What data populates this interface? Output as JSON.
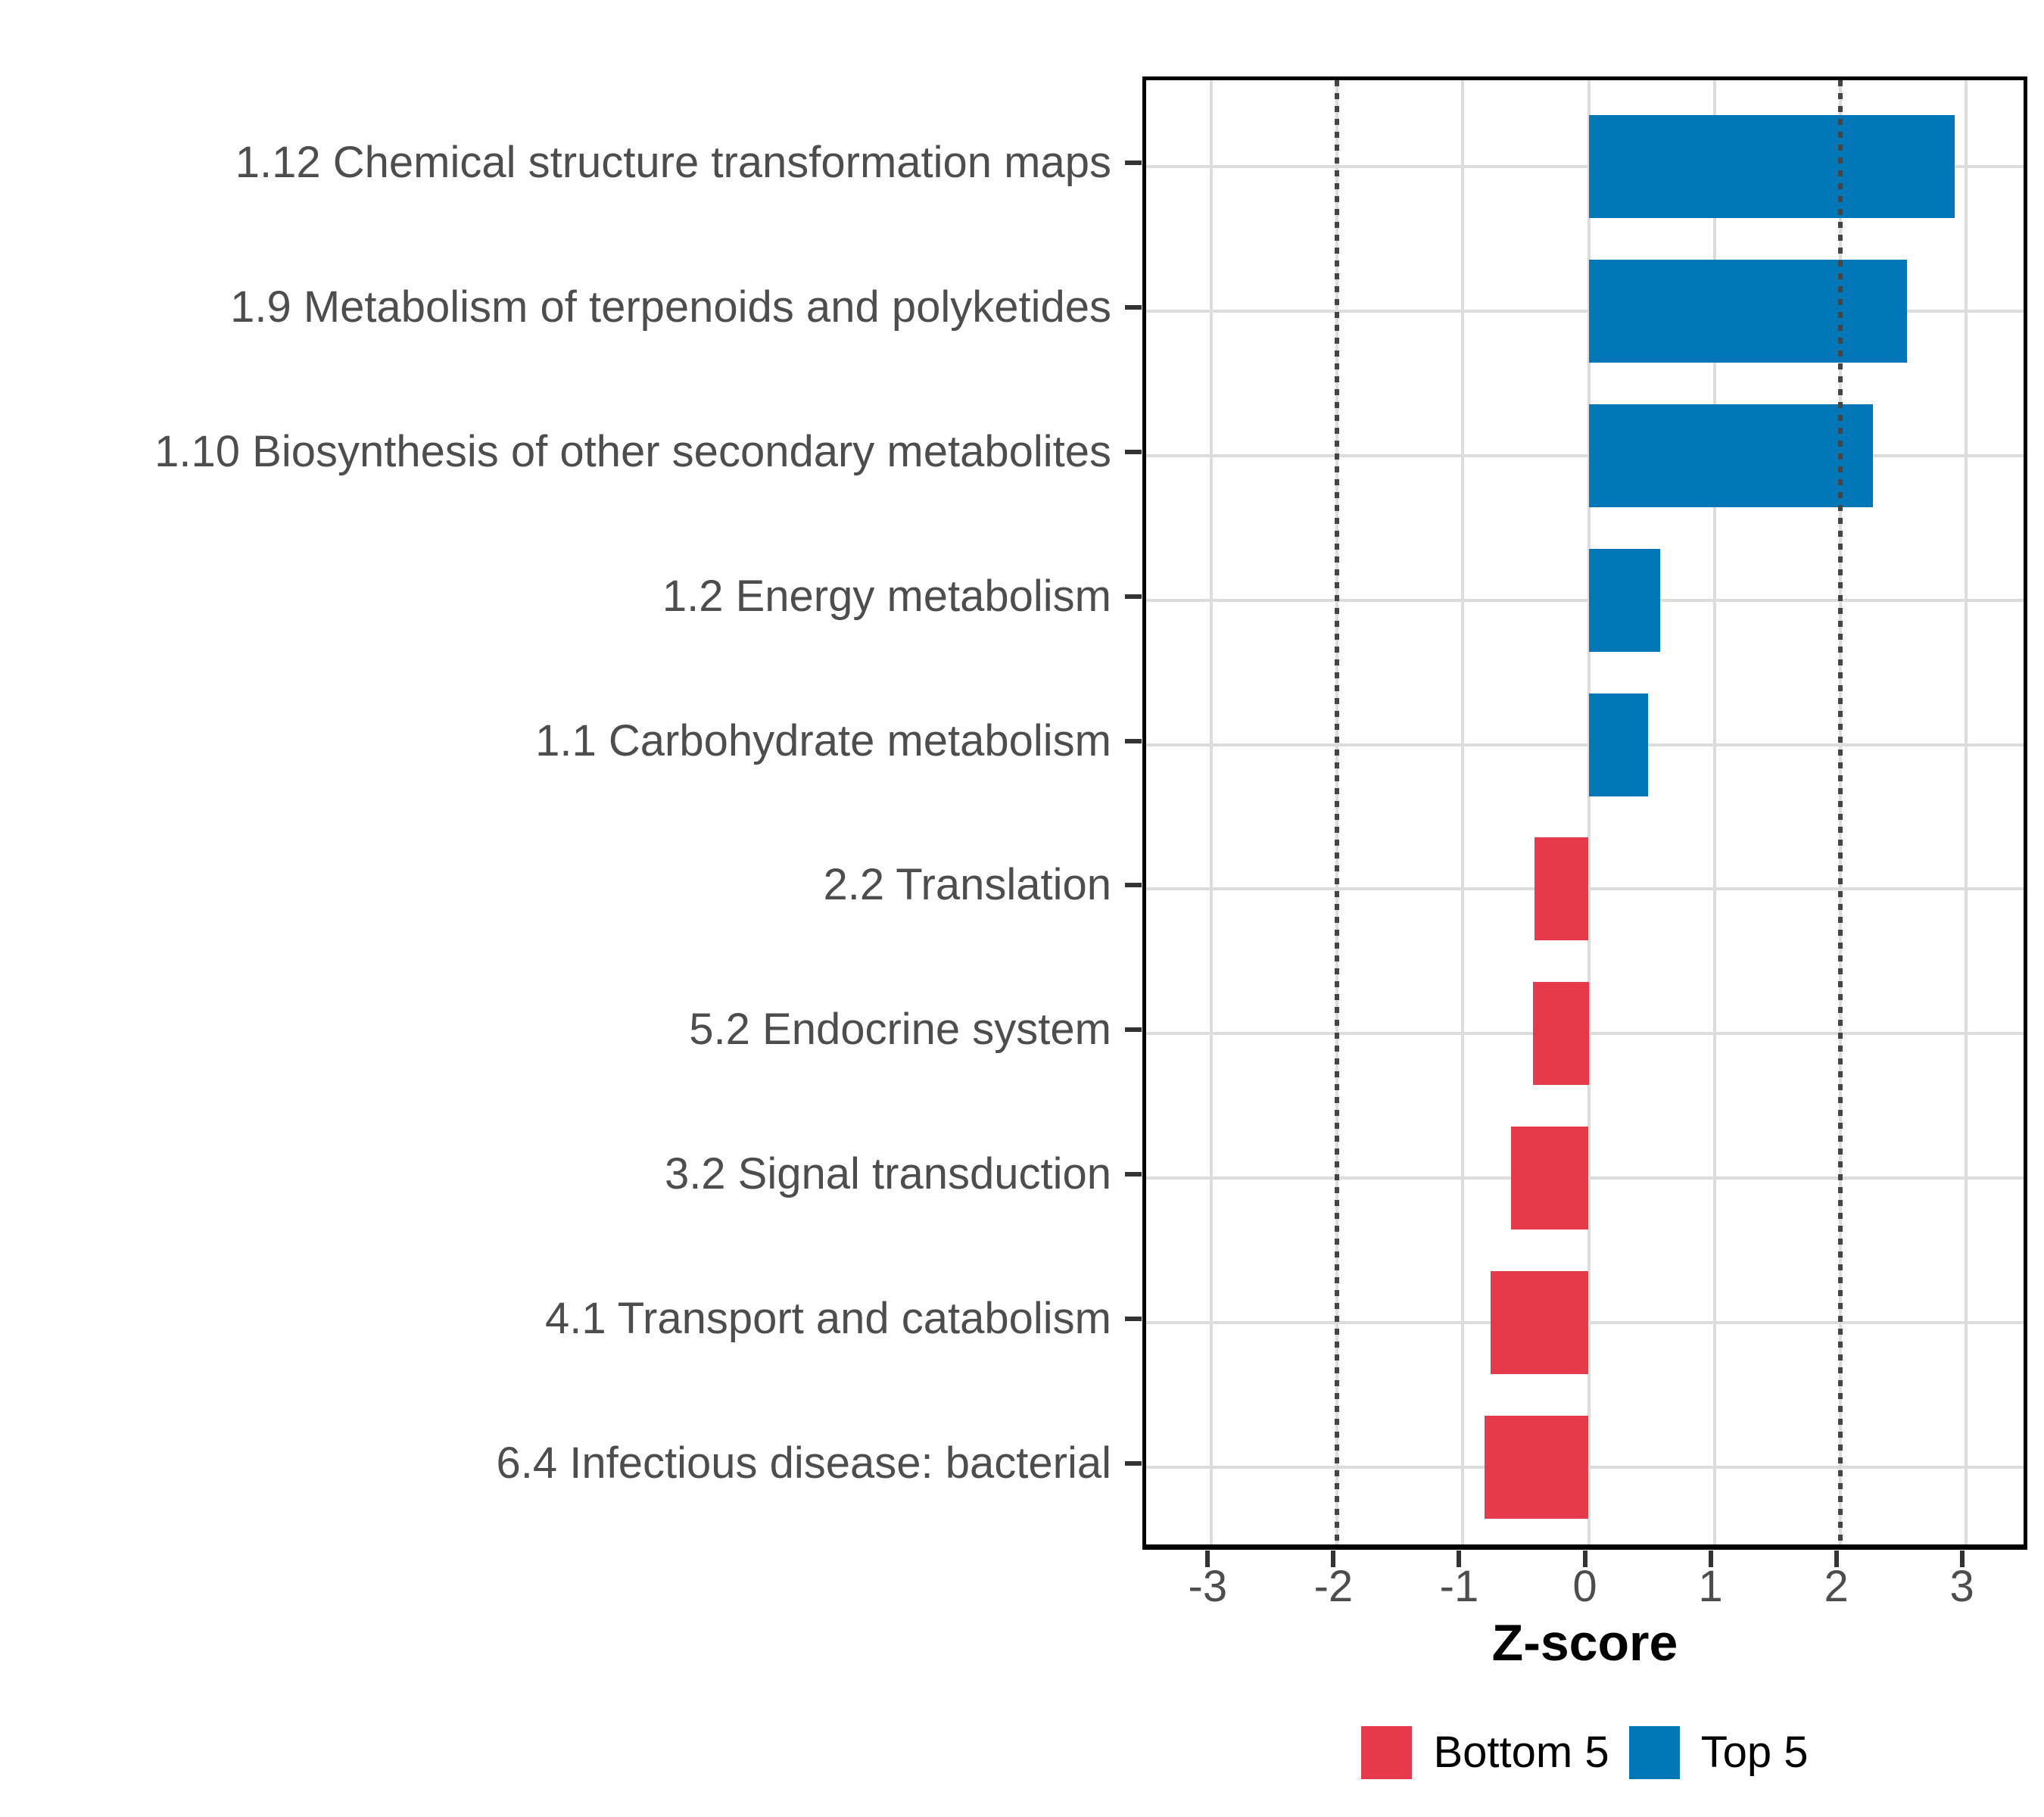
{
  "chart_data": {
    "type": "bar",
    "orientation": "horizontal",
    "title": "",
    "xlabel": "Z-score",
    "ylabel": "",
    "xlim": [
      -3.52,
      3.52
    ],
    "xticks": [
      -3,
      -2,
      -1,
      0,
      1,
      2,
      3
    ],
    "grid": {
      "show": true,
      "color": "#DCDCDC"
    },
    "panel": {
      "background": "#FFFFFF",
      "border_color": "#000000"
    },
    "axis_text_color": "#4D4D4D",
    "tick_color": "#333333",
    "reference_lines": {
      "values": [
        -2,
        2
      ],
      "style": "dotted",
      "color": "#454545"
    },
    "categories": [
      "1.12 Chemical structure transformation maps",
      "1.9 Metabolism of terpenoids and polyketides",
      "1.10 Biosynthesis of other secondary metabolites",
      "1.2 Energy metabolism",
      "1.1 Carbohydrate metabolism",
      "2.2 Translation",
      "5.2 Endocrine system",
      "3.2 Signal transduction",
      "4.1 Transport and catabolism",
      "6.4 Infectious disease: bacterial"
    ],
    "values": [
      2.91,
      2.53,
      2.26,
      0.57,
      0.47,
      -0.43,
      -0.44,
      -0.62,
      -0.78,
      -0.83
    ],
    "groups": [
      "Top 5",
      "Top 5",
      "Top 5",
      "Top 5",
      "Top 5",
      "Bottom 5",
      "Bottom 5",
      "Bottom 5",
      "Bottom 5",
      "Bottom 5"
    ],
    "series": [
      {
        "name": "Top 5",
        "color": "#0277B8",
        "values": [
          2.91,
          2.53,
          2.26,
          0.57,
          0.47,
          null,
          null,
          null,
          null,
          null
        ]
      },
      {
        "name": "Bottom 5",
        "color": "#E6394C",
        "values": [
          null,
          null,
          null,
          null,
          null,
          -0.43,
          -0.44,
          -0.62,
          -0.78,
          -0.83
        ]
      }
    ],
    "series_colors": {
      "Top 5": "#0277B8",
      "Bottom 5": "#E6394C"
    },
    "legend": {
      "position": "bottom",
      "entries": [
        {
          "label": "Bottom 5",
          "color": "#E6394C"
        },
        {
          "label": "Top 5",
          "color": "#0277B8"
        }
      ]
    }
  }
}
